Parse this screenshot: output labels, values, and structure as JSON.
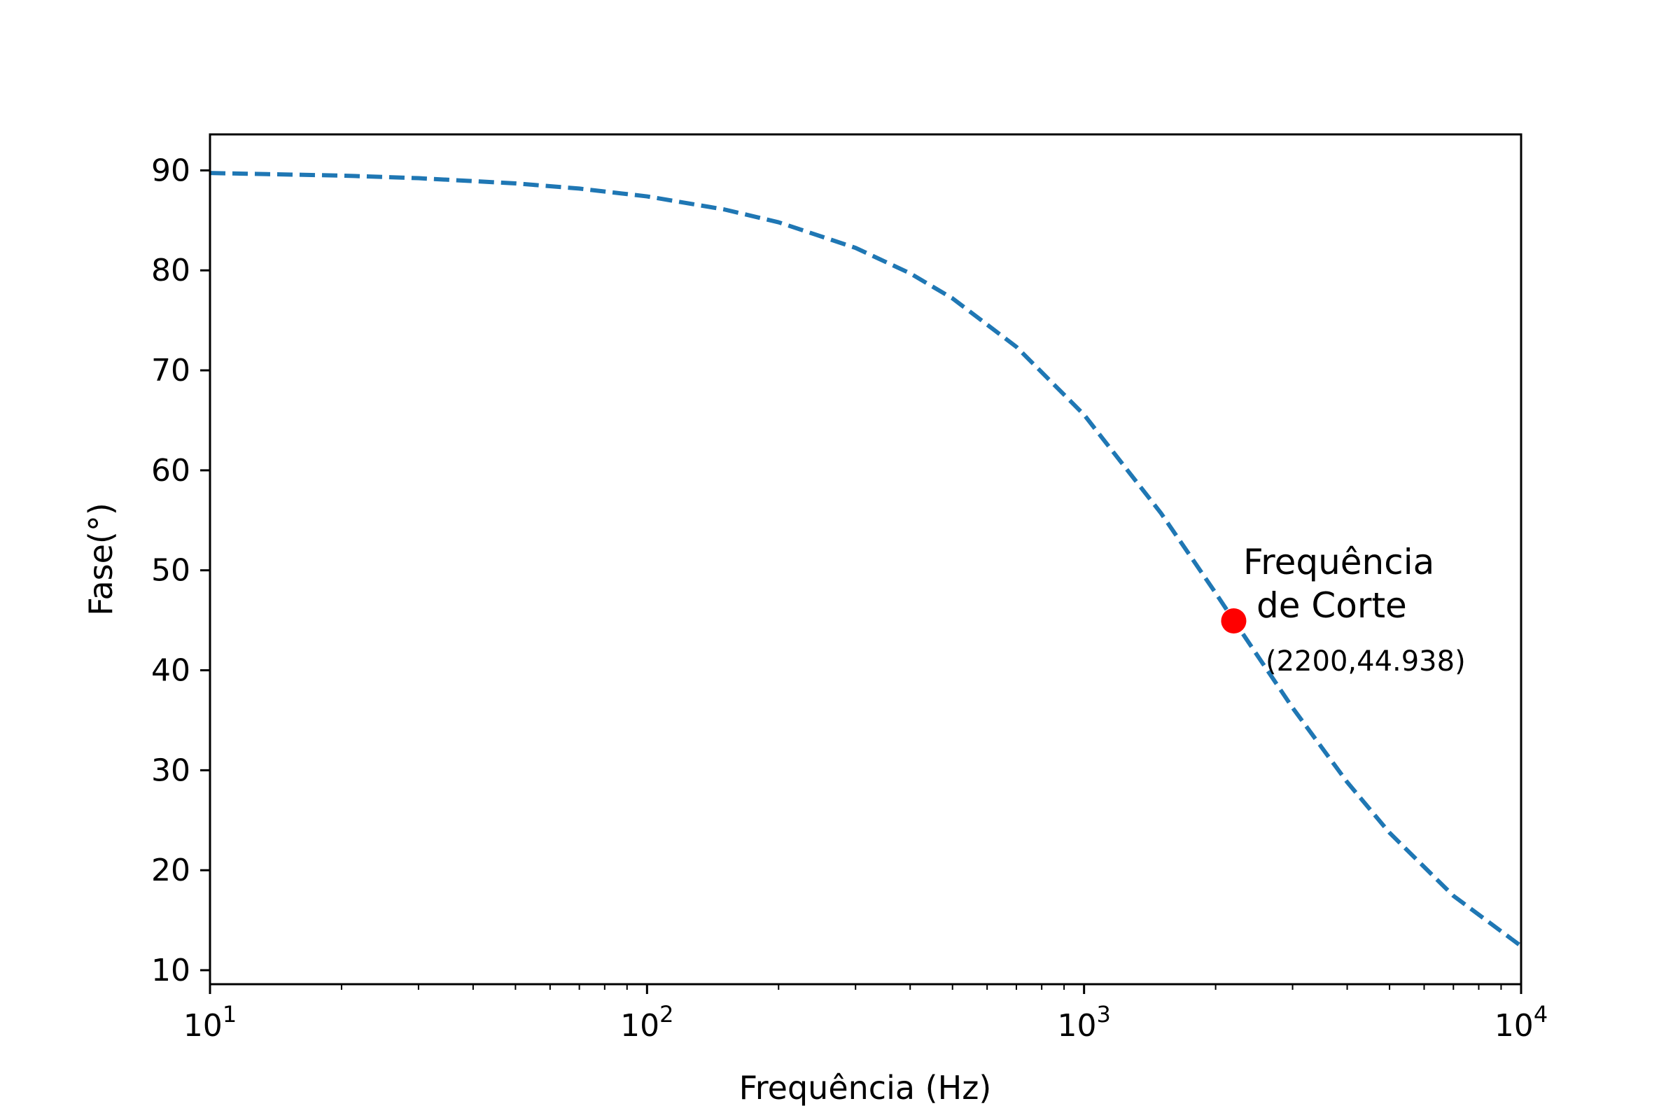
{
  "chart_data": {
    "type": "line",
    "title": "",
    "xlabel": "Frequência (Hz)",
    "ylabel": "Fase(°)",
    "x_scale": "log",
    "xlim": [
      10,
      10000
    ],
    "ylim": [
      8.6,
      93.6
    ],
    "grid": false,
    "x_ticks": [
      {
        "value": 10,
        "base": "10",
        "exp": "1"
      },
      {
        "value": 100,
        "base": "10",
        "exp": "2"
      },
      {
        "value": 1000,
        "base": "10",
        "exp": "3"
      },
      {
        "value": 10000,
        "base": "10",
        "exp": "4"
      }
    ],
    "y_ticks": [
      {
        "value": 10,
        "label": "10"
      },
      {
        "value": 20,
        "label": "20"
      },
      {
        "value": 30,
        "label": "30"
      },
      {
        "value": 40,
        "label": "40"
      },
      {
        "value": 50,
        "label": "50"
      },
      {
        "value": 60,
        "label": "60"
      },
      {
        "value": 70,
        "label": "70"
      },
      {
        "value": 80,
        "label": "80"
      },
      {
        "value": 90,
        "label": "90"
      }
    ],
    "series": [
      {
        "line_style": "dashed",
        "color": "#1f77b4",
        "x": [
          10,
          20,
          30,
          50,
          70,
          100,
          150,
          200,
          300,
          400,
          500,
          700,
          1000,
          1500,
          2000,
          2200,
          3000,
          4000,
          5000,
          7000,
          10000
        ],
        "y": [
          89.74,
          89.48,
          89.22,
          88.7,
          88.18,
          87.4,
          86.1,
          84.81,
          82.25,
          79.7,
          77.2,
          72.35,
          65.56,
          55.71,
          47.73,
          45.0,
          36.25,
          28.81,
          23.75,
          17.44,
          12.41
        ]
      }
    ],
    "highlight_point": {
      "x": 2200,
      "y": 44.938,
      "color": "#ff0000",
      "label_line1": "Frequência",
      "label_line2": "de Corte",
      "coord_label": "(2200,44.938)"
    }
  }
}
